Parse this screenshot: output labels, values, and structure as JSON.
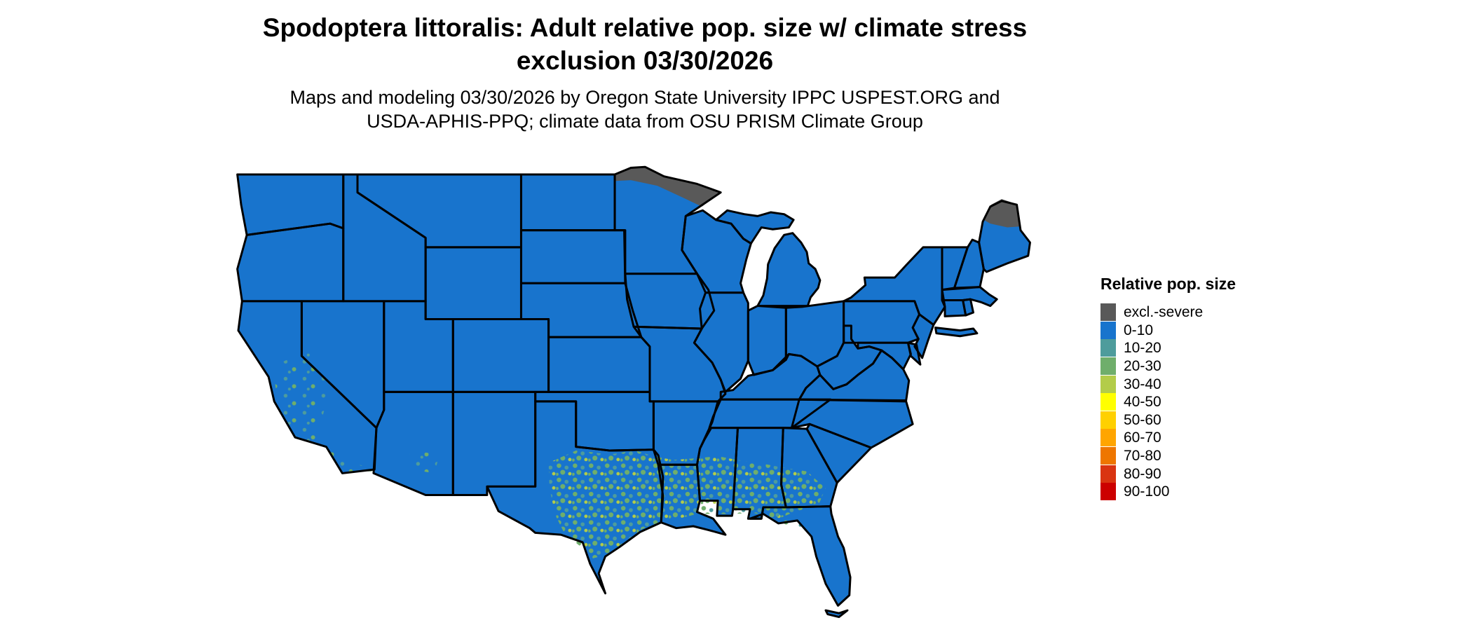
{
  "title": {
    "line1": "Spodoptera littoralis: Adult relative pop. size w/ climate stress",
    "line2": "exclusion 03/30/2026"
  },
  "subtitle": {
    "line1": "Maps and modeling 03/30/2026 by Oregon State University IPPC USPEST.ORG and",
    "line2": "USDA-APHIS-PPQ; climate data from OSU PRISM Climate Group"
  },
  "legend": {
    "title": "Relative pop. size",
    "items": [
      {
        "label": "excl.-severe",
        "color": "#595959"
      },
      {
        "label": "0-10",
        "color": "#1874CD"
      },
      {
        "label": "10-20",
        "color": "#4E9C9C"
      },
      {
        "label": "20-30",
        "color": "#6FAE6B"
      },
      {
        "label": "30-40",
        "color": "#B3CC49"
      },
      {
        "label": "40-50",
        "color": "#FFFF00"
      },
      {
        "label": "50-60",
        "color": "#FFD000"
      },
      {
        "label": "60-70",
        "color": "#FFA500"
      },
      {
        "label": "70-80",
        "color": "#EE7600"
      },
      {
        "label": "80-90",
        "color": "#D93411"
      },
      {
        "label": "90-100",
        "color": "#CC0000"
      }
    ]
  },
  "map": {
    "region": "Continental United States",
    "colors": {
      "base": "#1874CD",
      "excluded": "#595959",
      "c1020": "#4E9C9C",
      "c2030": "#6FAE6B",
      "c3040": "#B3CC49",
      "border": "#000000"
    }
  }
}
